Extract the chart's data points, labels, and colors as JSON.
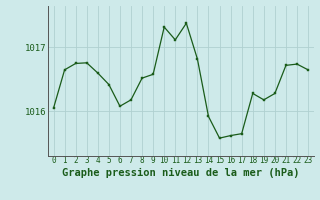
{
  "x": [
    0,
    1,
    2,
    3,
    4,
    5,
    6,
    7,
    8,
    9,
    10,
    11,
    12,
    13,
    14,
    15,
    16,
    17,
    18,
    19,
    20,
    21,
    22,
    23
  ],
  "y": [
    1016.05,
    1016.65,
    1016.75,
    1016.76,
    1016.6,
    1016.42,
    1016.08,
    1016.18,
    1016.52,
    1016.58,
    1017.32,
    1017.12,
    1017.38,
    1016.82,
    1015.92,
    1015.58,
    1015.62,
    1015.65,
    1016.28,
    1016.18,
    1016.28,
    1016.72,
    1016.74,
    1016.65
  ],
  "line_color": "#1a5c1a",
  "marker_color": "#1a5c1a",
  "bg_color": "#ceeaea",
  "grid_color": "#b0d0d0",
  "axis_color": "#555555",
  "title": "Graphe pression niveau de la mer (hPa)",
  "yticks": [
    1016,
    1017
  ],
  "ylim": [
    1015.3,
    1017.65
  ],
  "xlim": [
    -0.5,
    23.5
  ],
  "title_fontsize": 7.5,
  "tick_fontsize": 6.5,
  "xtick_fontsize": 5.5
}
